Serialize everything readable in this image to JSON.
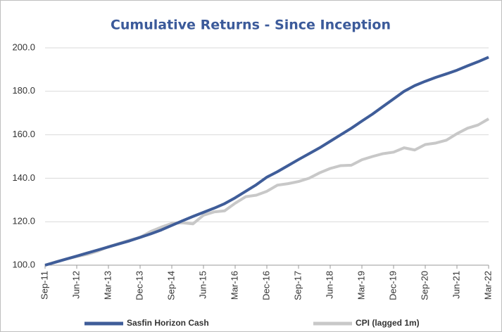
{
  "chart_data": {
    "type": "line",
    "title": "Cumulative Returns - Since Inception",
    "categories": [
      "Sep-11",
      null,
      null,
      "Jun-12",
      null,
      null,
      "Mar-13",
      null,
      null,
      "Dec-13",
      null,
      null,
      "Sep-14",
      null,
      null,
      "Jun-15",
      null,
      null,
      "Mar-16",
      null,
      null,
      "Dec-16",
      null,
      null,
      "Sep-17",
      null,
      null,
      "Jun-18",
      null,
      null,
      "Mar-19",
      null,
      null,
      "Dec-19",
      null,
      null,
      "Sep-20",
      null,
      null,
      "Jun-21",
      null,
      null,
      "Mar-22"
    ],
    "series": [
      {
        "name": "Sasfin Horizon Cash",
        "color": "#3f5d99",
        "values": [
          100,
          101.4,
          102.8,
          104.2,
          105.6,
          107,
          108.4,
          109.8,
          111.2,
          112.8,
          114.4,
          116.2,
          118.3,
          120.4,
          122.4,
          124.3,
          126.2,
          128.3,
          131,
          134,
          137,
          140.5,
          143,
          145.8,
          148.6,
          151.3,
          154,
          157,
          160,
          163,
          166.3,
          169.5,
          173,
          176.5,
          180,
          182.6,
          184.6,
          186.4,
          188,
          189.7,
          191.7,
          193.6,
          195.7
        ]
      },
      {
        "name": "CPI (lagged 1m)",
        "color": "#c8c8c8",
        "values": [
          100,
          101.5,
          102.8,
          104,
          105,
          106.5,
          108.5,
          110,
          111.5,
          112.8,
          115.5,
          117.5,
          119.2,
          119.5,
          119,
          123,
          124.5,
          125,
          128.5,
          131.5,
          132.2,
          134,
          136.8,
          137.5,
          138.5,
          140,
          142.5,
          144.5,
          145.8,
          146,
          148.5,
          150,
          151.3,
          152,
          154,
          153,
          155.5,
          156.2,
          157.5,
          160.5,
          163,
          164.5,
          167.3
        ]
      }
    ],
    "ylim": [
      100,
      200
    ],
    "yticks": [
      {
        "value": 100,
        "label": "100.0"
      },
      {
        "value": 120,
        "label": "120.0"
      },
      {
        "value": 140,
        "label": "140.0"
      },
      {
        "value": 160,
        "label": "160.0"
      },
      {
        "value": 180,
        "label": "180.0"
      },
      {
        "value": 200,
        "label": "200.0"
      }
    ],
    "grid": true,
    "legend": "bottom"
  }
}
